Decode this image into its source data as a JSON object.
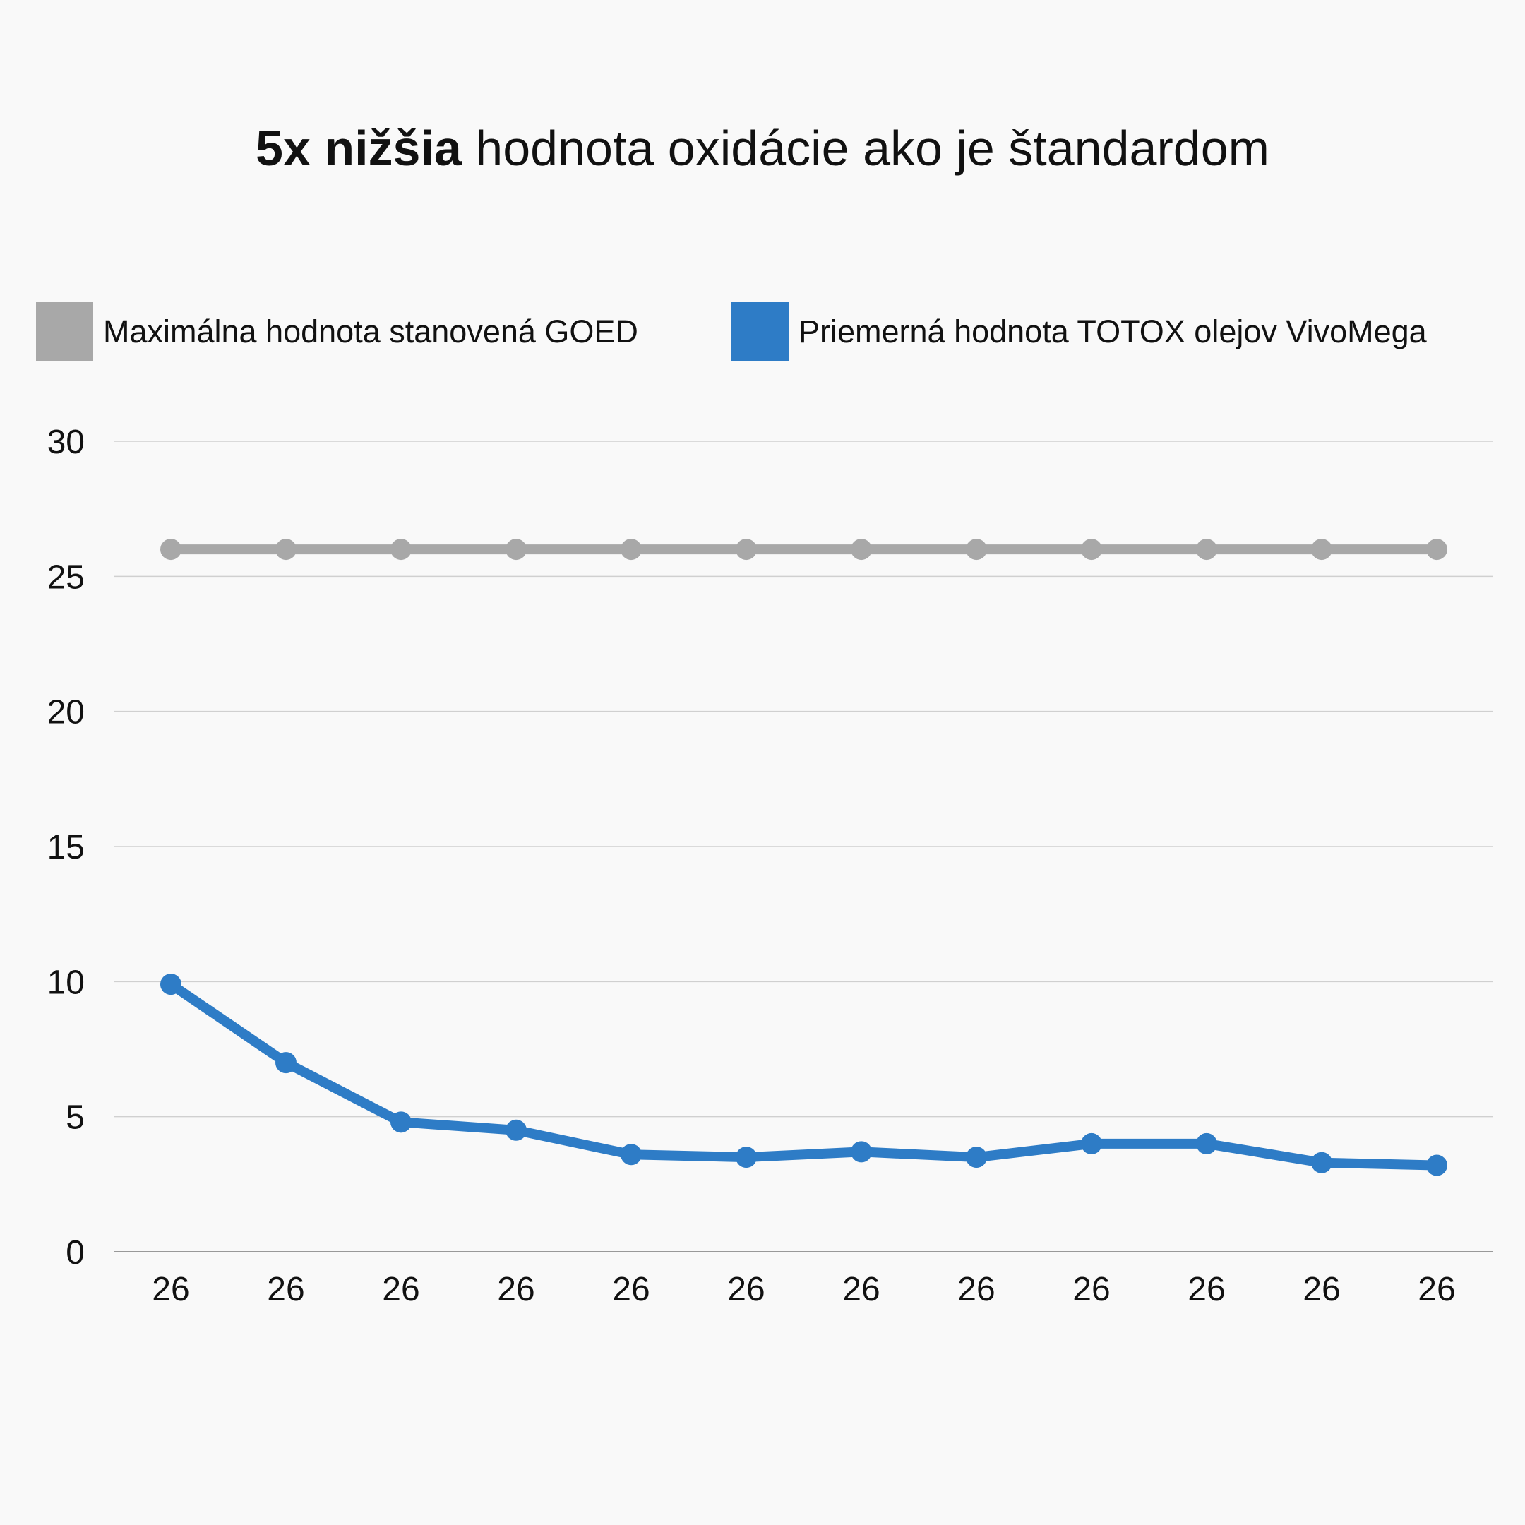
{
  "chart_data": {
    "type": "line",
    "title_bold": "5x nižšia",
    "title_rest": " hodnota oxidácie ako je štandardom",
    "categories": [
      "26",
      "26",
      "26",
      "26",
      "26",
      "26",
      "26",
      "26",
      "26",
      "26",
      "26",
      "26"
    ],
    "yticks": [
      "0",
      "5",
      "10",
      "15",
      "20",
      "25",
      "30"
    ],
    "ylim": [
      0,
      30
    ],
    "grid": true,
    "legend_placement": "top",
    "series": [
      {
        "name": "Maximálna hodnota stanovená GOED",
        "color": "#a8a8a8",
        "values": [
          26,
          26,
          26,
          26,
          26,
          26,
          26,
          26,
          26,
          26,
          26,
          26
        ]
      },
      {
        "name": "Priemerná hodnota TOTOX olejov VivoMega",
        "color": "#2e7cc6",
        "values": [
          9.9,
          7.0,
          4.8,
          4.5,
          3.6,
          3.5,
          3.7,
          3.5,
          4.0,
          4.0,
          3.3,
          3.2
        ]
      }
    ]
  }
}
